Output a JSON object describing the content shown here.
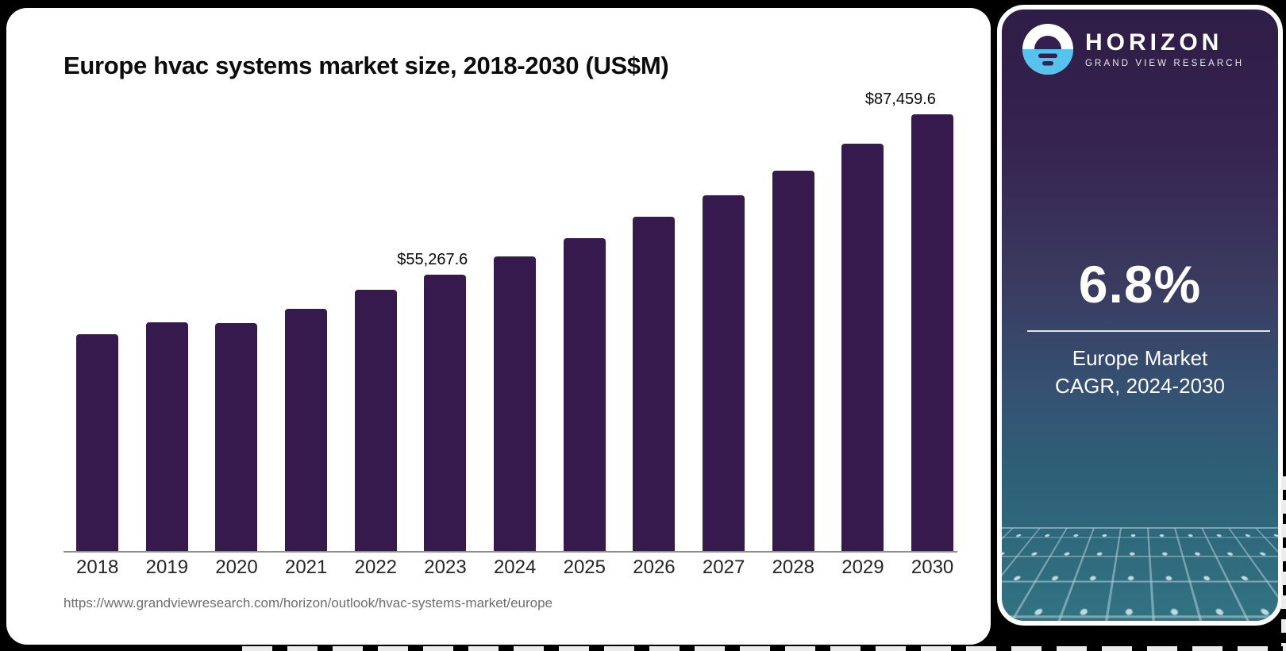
{
  "page": {
    "background_color": "#000000"
  },
  "chart_card": {
    "title": "Europe hvac systems market size, 2018-2030 (US$M)",
    "source_url": "https://www.grandviewresearch.com/horizon/outlook/hvac-systems-market/europe"
  },
  "chart_data": {
    "type": "bar",
    "title": "Europe hvac systems market size, 2018-2030 (US$M)",
    "categories": [
      "2018",
      "2019",
      "2020",
      "2021",
      "2022",
      "2023",
      "2024",
      "2025",
      "2026",
      "2027",
      "2028",
      "2029",
      "2030"
    ],
    "values": [
      43300,
      45700,
      45550,
      48400,
      52350,
      55267.6,
      58900,
      62550,
      66850,
      71150,
      76100,
      81500,
      87459.6
    ],
    "data_labels": [
      {
        "category": "2023",
        "text": "$55,267.6"
      },
      {
        "category": "2030",
        "text": "$87,459.6"
      }
    ],
    "xlabel": "",
    "ylabel": "",
    "ylim": [
      0,
      92000
    ],
    "grid": false,
    "legend": false,
    "bar_color": "#371A4D"
  },
  "sidebar": {
    "logo": {
      "brand": "HORIZON",
      "tagline": "GRAND VIEW RESEARCH",
      "mark": "sun-over-horizon-icon"
    },
    "stat_value": "6.8%",
    "stat_caption_line1": "Europe Market",
    "stat_caption_line2": "CAGR, 2024-2030",
    "colors": {
      "gradient_top": "#2E1D47",
      "gradient_mid": "#3A3A5F",
      "gradient_bottom": "#317382",
      "logo_blue": "#56C3EC",
      "logo_dark": "#33204E"
    }
  }
}
